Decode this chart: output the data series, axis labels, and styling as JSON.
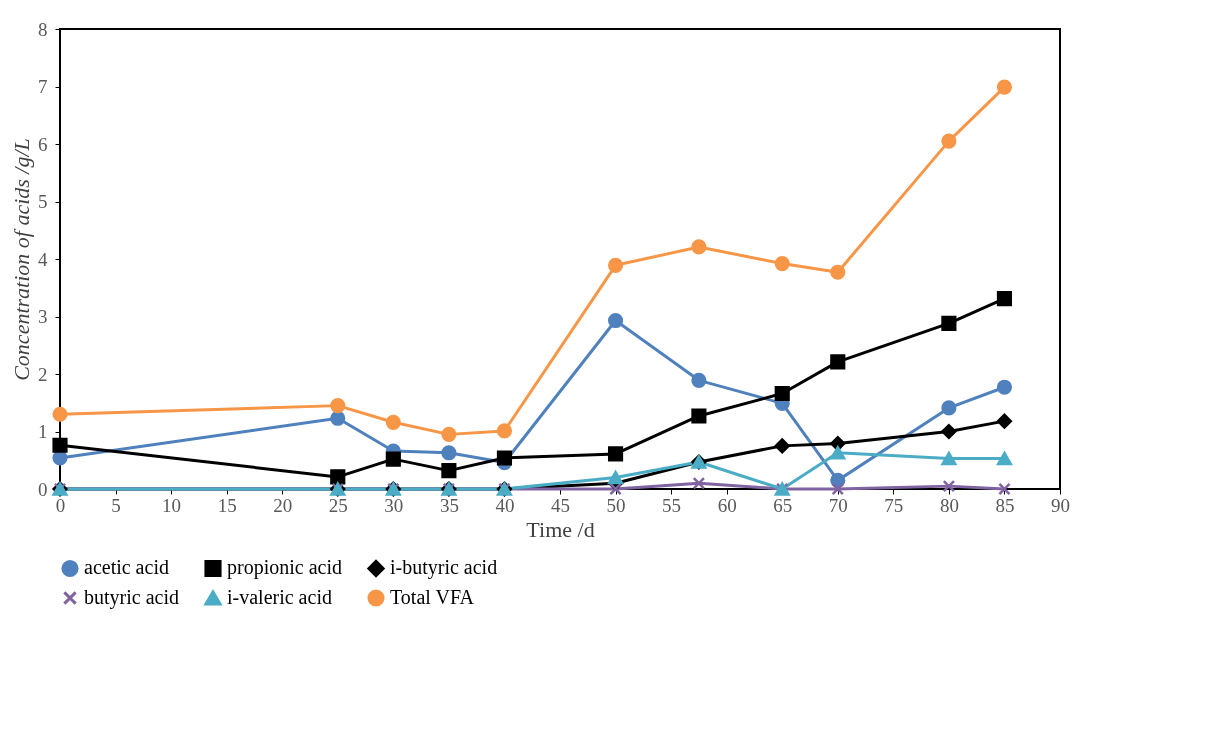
{
  "chart_data": {
    "type": "line",
    "xlabel": "Time /d",
    "ylabel": "Concentration of acids /g/L",
    "x": [
      0,
      25,
      30,
      35,
      40,
      50,
      57.5,
      65,
      70,
      80,
      85
    ],
    "xlim": [
      0,
      90
    ],
    "xticks": [
      0,
      5,
      10,
      15,
      20,
      25,
      30,
      35,
      40,
      45,
      50,
      55,
      60,
      65,
      70,
      75,
      80,
      85,
      90
    ],
    "ylim": [
      0,
      8
    ],
    "yticks": [
      0,
      1,
      2,
      3,
      4,
      5,
      6,
      7,
      8
    ],
    "grid": false,
    "legend": "bottom",
    "line_style": "solid",
    "series": [
      {
        "name": "acetic acid",
        "color": "#4f81bd",
        "marker": "circle",
        "values": [
          0.54,
          1.23,
          0.66,
          0.63,
          0.46,
          2.93,
          1.89,
          1.49,
          0.15,
          1.41,
          1.77
        ]
      },
      {
        "name": "propionic acid",
        "color": "#000000",
        "marker": "square",
        "values": [
          0.76,
          0.21,
          0.52,
          0.32,
          0.54,
          0.61,
          1.27,
          1.66,
          2.21,
          2.88,
          3.31
        ]
      },
      {
        "name": "i-butyric acid",
        "color": "#000000",
        "marker": "diamond",
        "values": [
          0,
          0,
          0,
          0,
          0,
          0.1,
          0.47,
          0.75,
          0.79,
          1.0,
          1.18
        ]
      },
      {
        "name": "butyric acid",
        "color": "#8064a2",
        "marker": "cross",
        "values": [
          0,
          0,
          0,
          0,
          0,
          0,
          0.1,
          0,
          0,
          0.05,
          0
        ]
      },
      {
        "name": "i-valeric acid",
        "color": "#4bacc6",
        "marker": "triangle",
        "values": [
          0,
          0,
          0,
          0,
          0,
          0.2,
          0.47,
          0,
          0.63,
          0.53,
          0.53
        ]
      },
      {
        "name": "Total VFA",
        "color": "#f79646",
        "marker": "circle",
        "values": [
          1.3,
          1.45,
          1.16,
          0.95,
          1.01,
          3.89,
          4.21,
          3.92,
          3.77,
          6.05,
          6.99
        ]
      }
    ]
  }
}
